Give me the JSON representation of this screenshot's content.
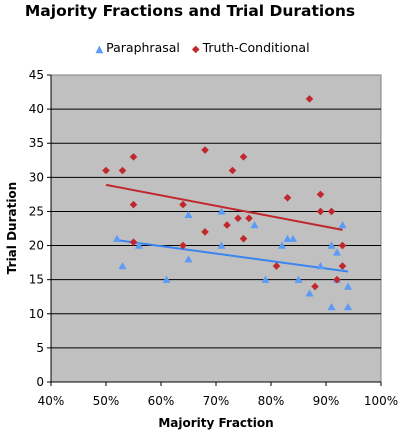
{
  "chart_data": {
    "type": "scatter",
    "title": "Majority Fractions and Trial Durations",
    "xlabel": "Majority Fraction",
    "ylabel": "Trial Duration",
    "xlim": [
      0.4,
      1.0
    ],
    "ylim": [
      0,
      45
    ],
    "x_ticks": [
      "40%",
      "50%",
      "60%",
      "70%",
      "80%",
      "90%",
      "100%"
    ],
    "y_ticks": [
      "0",
      "5",
      "10",
      "15",
      "20",
      "25",
      "30",
      "35",
      "40",
      "45"
    ],
    "x_tick_values": [
      0.4,
      0.5,
      0.6,
      0.7,
      0.8,
      0.9,
      1.0
    ],
    "y_tick_values": [
      0,
      5,
      10,
      15,
      20,
      25,
      30,
      35,
      40,
      45
    ],
    "grid": "horizontal",
    "plot_background": "#c0c0c0",
    "legend_position": "top",
    "series": [
      {
        "name": "Paraphrasal",
        "marker": "triangle",
        "color": "#5b9bf8",
        "points": [
          [
            0.52,
            21
          ],
          [
            0.53,
            17
          ],
          [
            0.56,
            20
          ],
          [
            0.61,
            15
          ],
          [
            0.65,
            24.5
          ],
          [
            0.65,
            18
          ],
          [
            0.71,
            25
          ],
          [
            0.71,
            20
          ],
          [
            0.77,
            23
          ],
          [
            0.79,
            15
          ],
          [
            0.82,
            20
          ],
          [
            0.83,
            21
          ],
          [
            0.84,
            21
          ],
          [
            0.85,
            15
          ],
          [
            0.87,
            13
          ],
          [
            0.89,
            17
          ],
          [
            0.91,
            20
          ],
          [
            0.91,
            11
          ],
          [
            0.92,
            19
          ],
          [
            0.92,
            15
          ],
          [
            0.93,
            23
          ],
          [
            0.94,
            14
          ],
          [
            0.94,
            11
          ]
        ],
        "trendline": [
          [
            0.52,
            20.8
          ],
          [
            0.94,
            16.2
          ]
        ],
        "trend_color": "#3a86f0"
      },
      {
        "name": "Truth-Conditional",
        "marker": "diamond",
        "color": "#c0282d",
        "points": [
          [
            0.5,
            31
          ],
          [
            0.53,
            31
          ],
          [
            0.55,
            33
          ],
          [
            0.55,
            26
          ],
          [
            0.55,
            20.5
          ],
          [
            0.64,
            26
          ],
          [
            0.64,
            20
          ],
          [
            0.68,
            34
          ],
          [
            0.68,
            22
          ],
          [
            0.72,
            23
          ],
          [
            0.73,
            31
          ],
          [
            0.74,
            24
          ],
          [
            0.75,
            33
          ],
          [
            0.75,
            21
          ],
          [
            0.76,
            24
          ],
          [
            0.81,
            17
          ],
          [
            0.83,
            27
          ],
          [
            0.87,
            41.5
          ],
          [
            0.88,
            14
          ],
          [
            0.89,
            27.5
          ],
          [
            0.89,
            25
          ],
          [
            0.91,
            25
          ],
          [
            0.92,
            15
          ],
          [
            0.93,
            20
          ],
          [
            0.93,
            17
          ]
        ],
        "trendline": [
          [
            0.5,
            28.9
          ],
          [
            0.93,
            22.3
          ]
        ],
        "trend_color": "#c0282d"
      }
    ]
  }
}
